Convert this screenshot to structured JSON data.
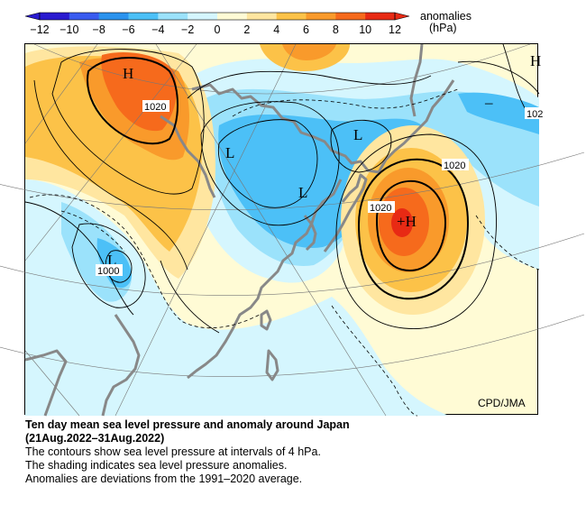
{
  "legend": {
    "title": "anomalies",
    "unit": "(hPa)",
    "ticks": [
      "−12",
      "−10",
      "−8",
      "−6",
      "−4",
      "−2",
      "0",
      "2",
      "4",
      "6",
      "8",
      "10",
      "12"
    ],
    "colors": [
      "#2a1bd0",
      "#3a5cf0",
      "#2b93ee",
      "#4cc0f7",
      "#9be2fb",
      "#d5f6fe",
      "#fffbd5",
      "#ffe6a0",
      "#fcc248",
      "#f99a2b",
      "#f66a1c",
      "#e82a14"
    ]
  },
  "map": {
    "credit": "CPD/JMA",
    "pressure_centers": [
      {
        "label": "H",
        "kind": "high"
      },
      {
        "label": "H",
        "kind": "high"
      },
      {
        "label": "+H",
        "kind": "high"
      },
      {
        "label": "L",
        "kind": "low"
      },
      {
        "label": "L",
        "kind": "low"
      },
      {
        "label": "L",
        "kind": "low"
      },
      {
        "label": "L",
        "kind": "low"
      }
    ],
    "contour_labels": [
      "1020",
      "1020",
      "1020",
      "1000",
      "102"
    ],
    "minus_sign": "–"
  },
  "caption": {
    "title": "Ten day mean sea level pressure and anomaly around Japan",
    "period": "(21Aug.2022–31Aug.2022)",
    "lines": [
      "The contours show sea level pressure at intervals of 4 hPa.",
      "The shading indicates sea level pressure anomalies.",
      "Anomalies are deviations from the 1991–2020 average."
    ]
  }
}
